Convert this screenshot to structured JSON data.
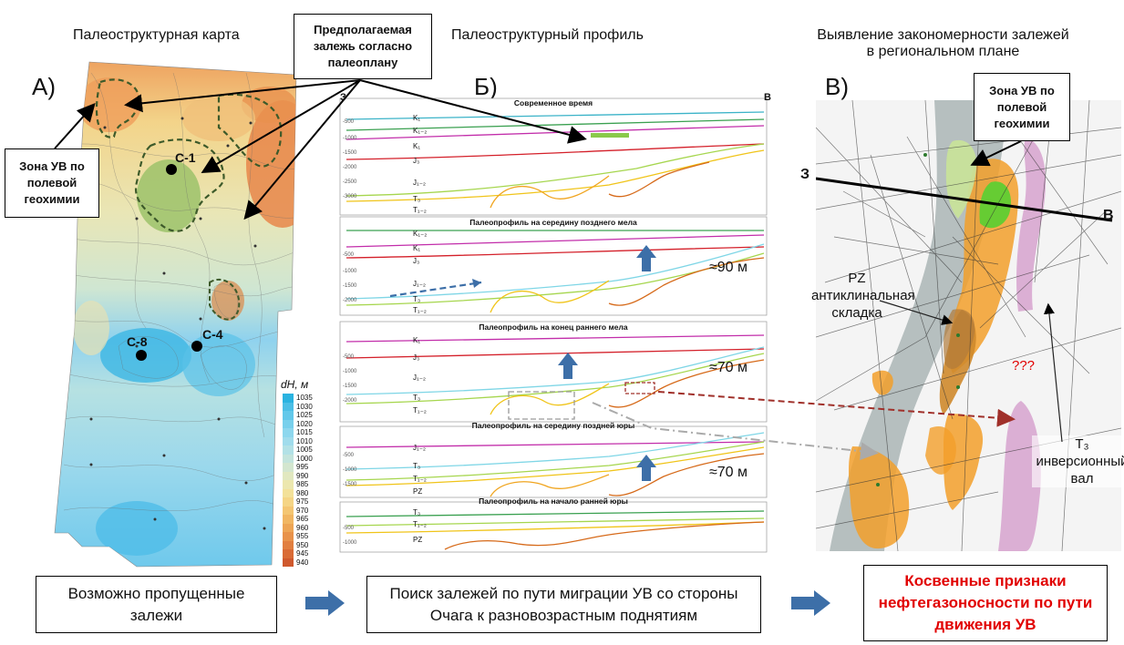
{
  "headers": {
    "map": "Палеоструктурная карта",
    "profile": "Палеоструктурный профиль",
    "regional_l1": "Выявление закономерности залежей",
    "regional_l2": "в региональном плане"
  },
  "labels": {
    "a": "А)",
    "b": "Б)",
    "v": "В)"
  },
  "callouts": {
    "supposed_l1": "Предполагаемая",
    "supposed_l2": "залежь согласно",
    "supposed_l3": "палеоплану",
    "zone_l1": "Зона УВ по",
    "zone_l2": "полевой",
    "zone_l3": "геохимии"
  },
  "map": {
    "wells": [
      "С-1",
      "С-8",
      "С-4"
    ],
    "legend_title": "dH, м",
    "legend_values": [
      "1035",
      "1030",
      "1025",
      "1020",
      "1015",
      "1010",
      "1005",
      "1000",
      "995",
      "990",
      "985",
      "980",
      "975",
      "970",
      "965",
      "960",
      "955",
      "950",
      "945",
      "940"
    ],
    "legend_colors": [
      "#2ab3e0",
      "#4bbfe6",
      "#62c8ea",
      "#78d0ec",
      "#8dd7ee",
      "#a0dcec",
      "#b2e1e6",
      "#c3e4dc",
      "#d3e6cf",
      "#e1e8c0",
      "#ece7ae",
      "#f3e199",
      "#f5d585",
      "#f4c672",
      "#f1b662",
      "#eda555",
      "#e8924a",
      "#e17f40",
      "#d96b36",
      "#cf582d"
    ]
  },
  "profile": {
    "panels": [
      {
        "title": "Современное время",
        "layers": [
          "K₁",
          "K₁₋₂",
          "K₁",
          "J₃",
          "J₁₋₂",
          "T₃",
          "T₁₋₂"
        ]
      },
      {
        "title": "Палеопрофиль на середину позднего мела",
        "layers": [
          "K₁₋₂",
          "K₁",
          "J₃",
          "J₁₋₂",
          "T₃",
          "T₁₋₂"
        ],
        "note": "≈90 м"
      },
      {
        "title": "Палеопрофиль на конец раннего мела",
        "layers": [
          "K₁",
          "J₃",
          "J₁₋₂",
          "T₃",
          "T₁₋₂"
        ],
        "note": "≈70 м"
      },
      {
        "title": "Палеопрофиль на середину поздней юры",
        "layers": [
          "J₁₋₂",
          "T₃",
          "T₁₋₂",
          "PZ"
        ],
        "note": "≈70 м"
      },
      {
        "title": "Палеопрофиль на начало ранней юры",
        "layers": [
          "T₃",
          "T₁₋₂",
          "PZ"
        ]
      }
    ],
    "edge_z": "З",
    "edge_v": "В"
  },
  "regional": {
    "z": "З",
    "v": "В",
    "pz_l1": "PZ",
    "pz_l2": "антиклинальная",
    "pz_l3": "складка",
    "qq": "???",
    "t3_l1": "T₃",
    "t3_l2": "инверсионный",
    "t3_l3": "вал"
  },
  "bottom": {
    "left": "Возможно пропущенные залежи",
    "middle": "Поиск залежей  по пути миграции УВ со стороны Очага к разновозрастным поднятиям",
    "right": "Косвенные признаки нефтегазоносности по пути движения УВ"
  },
  "colors": {
    "accent_arrow": "#3d6fa8",
    "alert": "#e10000",
    "dash_red": "#a0302a"
  }
}
